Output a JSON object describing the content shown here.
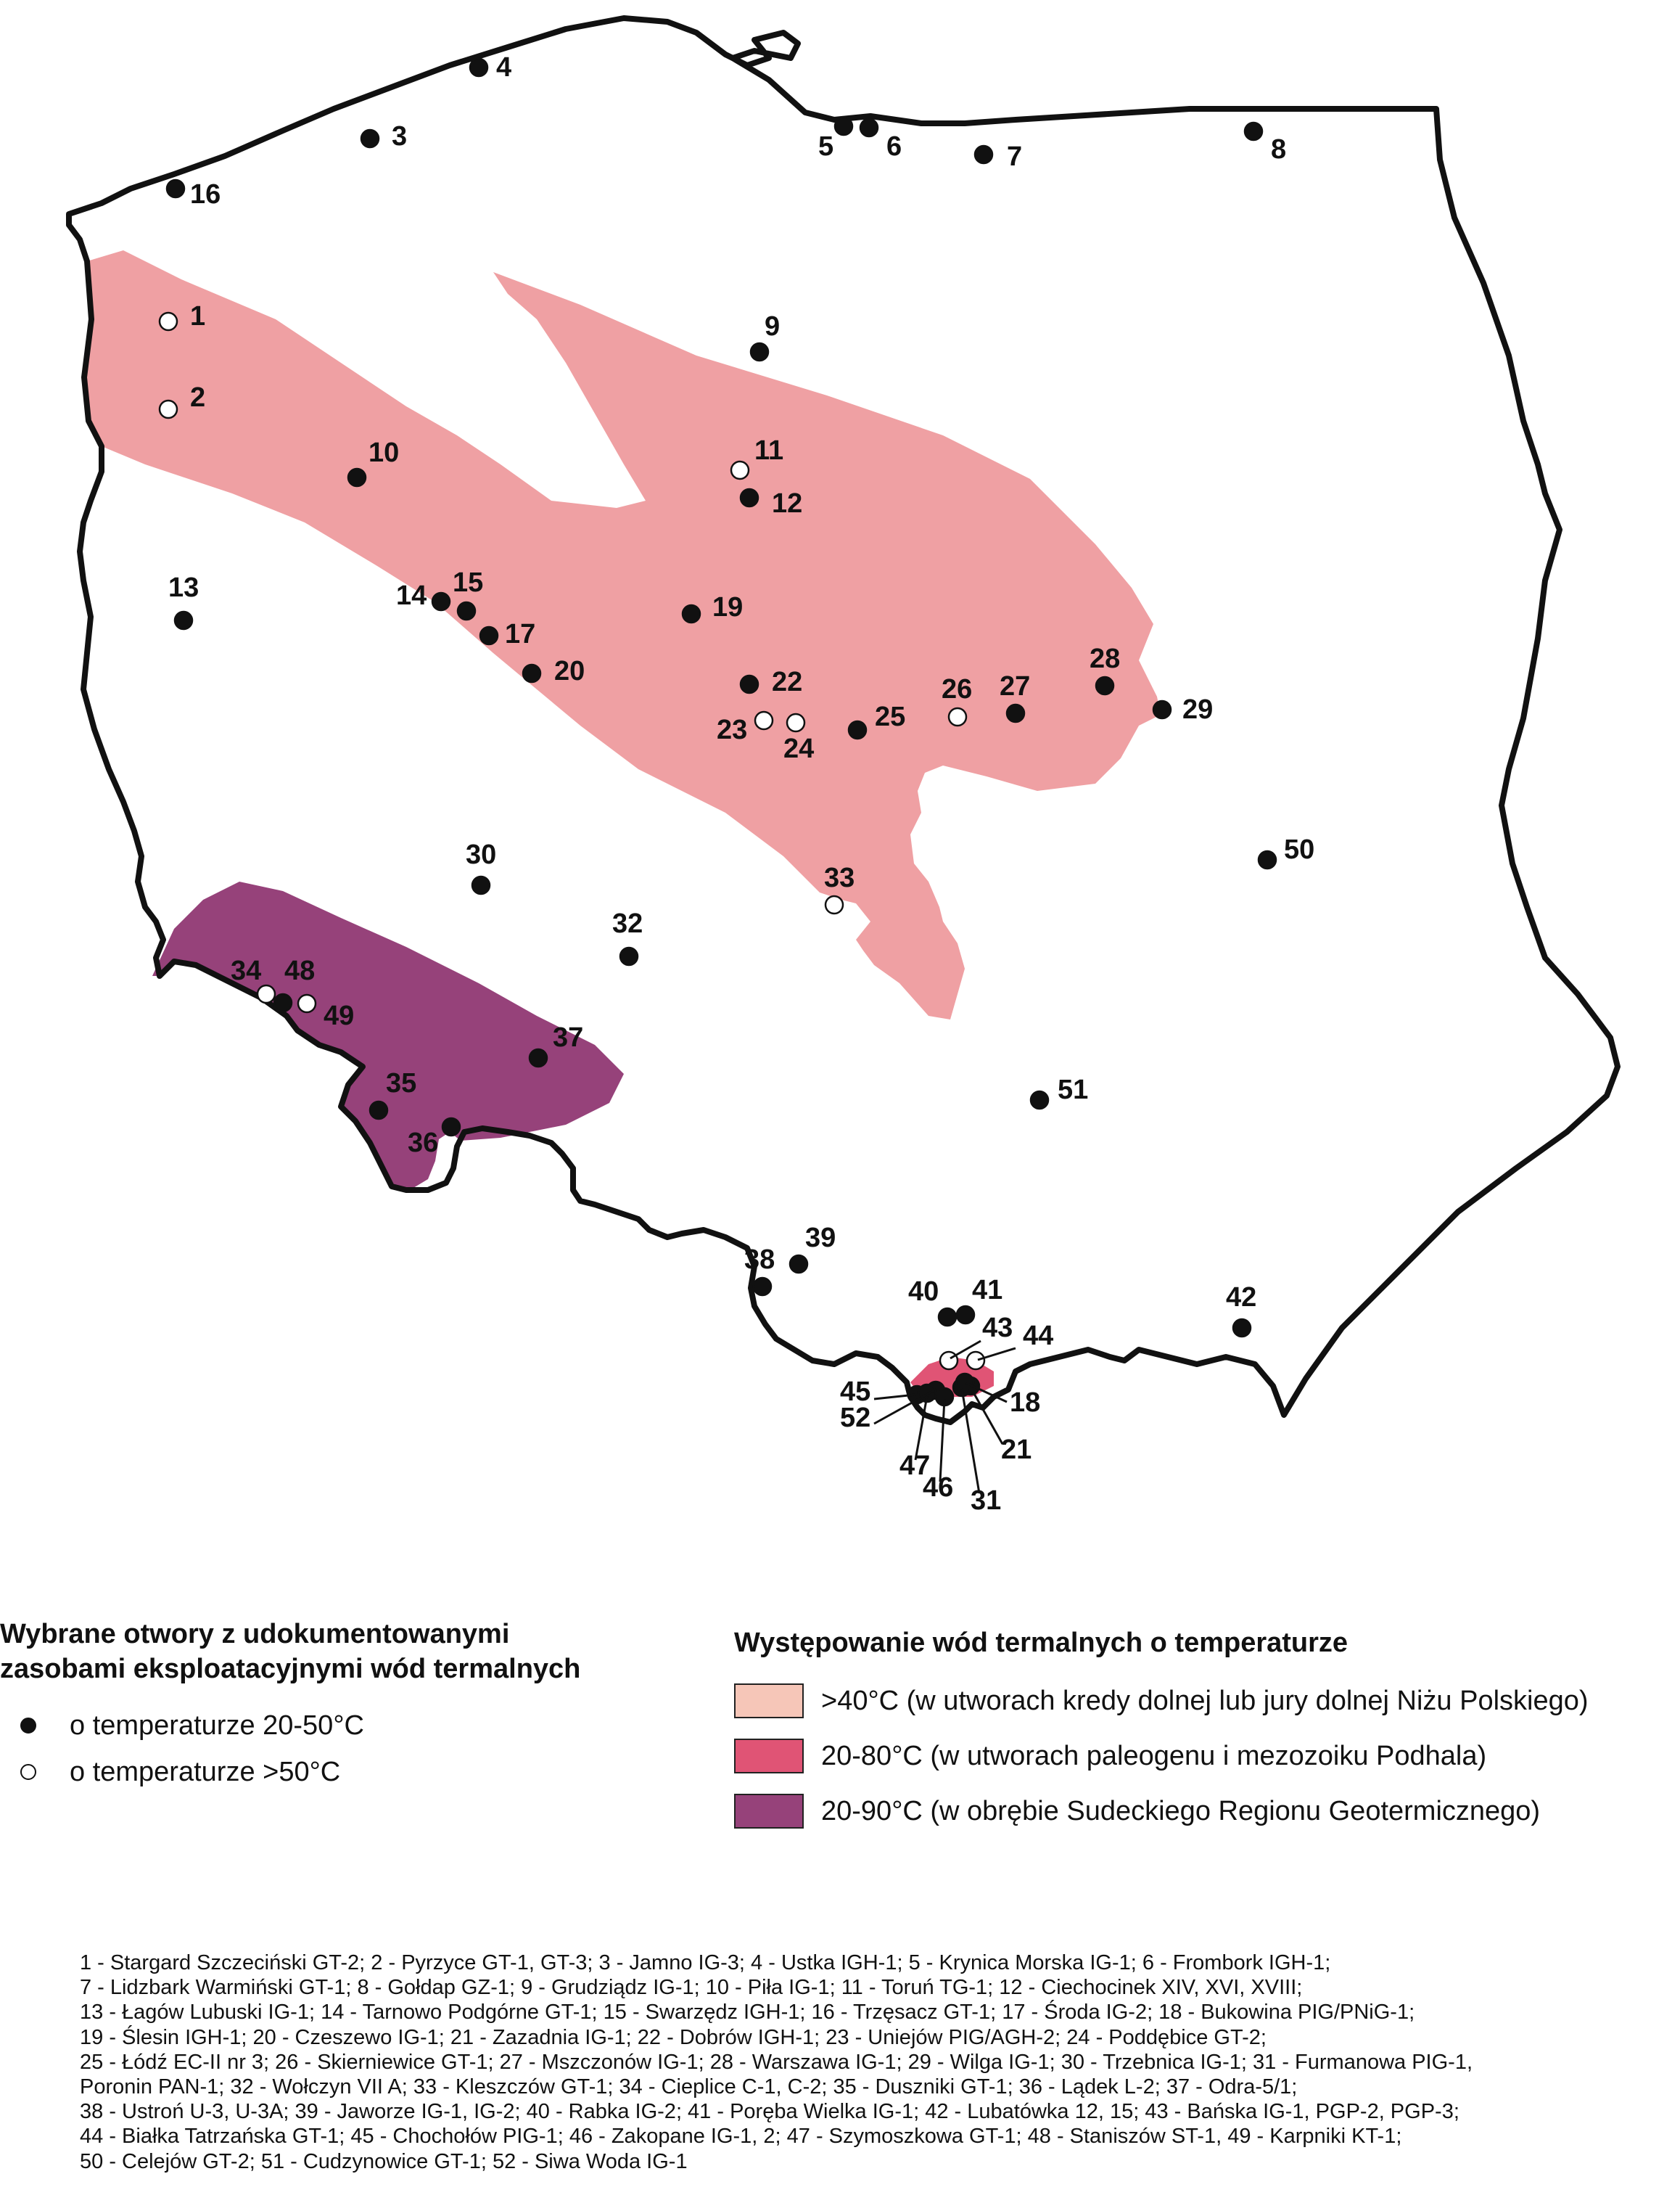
{
  "colors": {
    "zone_40": "#efa0a3",
    "zone_20_80": "#e05475",
    "zone_20_90": "#96427a",
    "swatch_40": "#f6c6b8",
    "dot_warm": "#111111",
    "dot_hot": "#ffffff"
  },
  "wells": [
    {
      "id": "1",
      "label": "1",
      "type": "hot"
    },
    {
      "id": "2",
      "label": "2",
      "type": "hot"
    },
    {
      "id": "3",
      "label": "3",
      "type": "warm"
    },
    {
      "id": "4",
      "label": "4",
      "type": "warm"
    },
    {
      "id": "5",
      "label": "5",
      "type": "warm"
    },
    {
      "id": "6",
      "label": "6",
      "type": "warm"
    },
    {
      "id": "7",
      "label": "7",
      "type": "warm"
    },
    {
      "id": "8",
      "label": "8",
      "type": "warm"
    },
    {
      "id": "9",
      "label": "9",
      "type": "warm"
    },
    {
      "id": "10",
      "label": "10",
      "type": "warm"
    },
    {
      "id": "11",
      "label": "11",
      "type": "hot"
    },
    {
      "id": "12",
      "label": "12",
      "type": "warm"
    },
    {
      "id": "13",
      "label": "13",
      "type": "warm"
    },
    {
      "id": "14",
      "label": "14",
      "type": "warm"
    },
    {
      "id": "15",
      "label": "15",
      "type": "warm"
    },
    {
      "id": "16",
      "label": "16",
      "type": "warm"
    },
    {
      "id": "17",
      "label": "17",
      "type": "warm"
    },
    {
      "id": "19",
      "label": "19",
      "type": "warm"
    },
    {
      "id": "20",
      "label": "20",
      "type": "warm"
    },
    {
      "id": "22",
      "label": "22",
      "type": "warm"
    },
    {
      "id": "23",
      "label": "23",
      "type": "hot"
    },
    {
      "id": "24",
      "label": "24",
      "type": "hot"
    },
    {
      "id": "25",
      "label": "25",
      "type": "warm"
    },
    {
      "id": "26",
      "label": "26",
      "type": "hot"
    },
    {
      "id": "27",
      "label": "27",
      "type": "warm"
    },
    {
      "id": "28",
      "label": "28",
      "type": "warm"
    },
    {
      "id": "29",
      "label": "29",
      "type": "warm"
    },
    {
      "id": "30",
      "label": "30",
      "type": "warm"
    },
    {
      "id": "32",
      "label": "32",
      "type": "warm"
    },
    {
      "id": "33",
      "label": "33",
      "type": "hot"
    },
    {
      "id": "34",
      "label": "34",
      "type": "hot"
    },
    {
      "id": "48",
      "label": "48",
      "type": "warm"
    },
    {
      "id": "49",
      "label": "49",
      "type": "hot"
    },
    {
      "id": "35",
      "label": "35",
      "type": "warm"
    },
    {
      "id": "36",
      "label": "36",
      "type": "warm"
    },
    {
      "id": "37",
      "label": "37",
      "type": "warm"
    },
    {
      "id": "50",
      "label": "50",
      "type": "warm"
    },
    {
      "id": "51",
      "label": "51",
      "type": "warm"
    },
    {
      "id": "38",
      "label": "38",
      "type": "warm"
    },
    {
      "id": "39",
      "label": "39",
      "type": "warm"
    },
    {
      "id": "40",
      "label": "40",
      "type": "warm"
    },
    {
      "id": "41",
      "label": "41",
      "type": "warm"
    },
    {
      "id": "42",
      "label": "42",
      "type": "warm"
    },
    {
      "id": "43",
      "label": "43",
      "type": "hot"
    },
    {
      "id": "44",
      "label": "44",
      "type": "hot"
    },
    {
      "id": "45",
      "label": "45",
      "type": "warm"
    },
    {
      "id": "52",
      "label": "52",
      "type": "warm"
    },
    {
      "id": "47",
      "label": "47",
      "type": "warm"
    },
    {
      "id": "46",
      "label": "46",
      "type": "warm"
    },
    {
      "id": "31",
      "label": "31",
      "type": "warm"
    },
    {
      "id": "21",
      "label": "21",
      "type": "warm"
    },
    {
      "id": "18",
      "label": "18",
      "type": "warm"
    }
  ],
  "legend_wells": {
    "title_line1": "Wybrane otwory z udokumentowanymi",
    "title_line2": "zasobami eksploatacyjnymi wód termalnych",
    "warm_label": "o temperaturze 20-50°C",
    "hot_label": "o temperaturze >50°C"
  },
  "legend_zones": {
    "title": "Występowanie wód termalnych o temperaturze",
    "zone_40_label": ">40°C (w utworach kredy dolnej lub jury dolnej Niżu Polskiego)",
    "zone_20_80_label": "20-80°C (w utworach paleogenu i mezozoiku Podhala)",
    "zone_20_90_label": "20-90°C (w obrębie Sudeckiego Regionu Geotermicznego)"
  },
  "well_list": [
    "1 - Stargard Szczeciński GT-2; 2 - Pyrzyce GT-1, GT-3; 3 - Jamno IG-3; 4 - Ustka IGH-1; 5 - Krynica Morska IG-1; 6 - Frombork IGH-1;",
    "7 - Lidzbark Warmiński GT-1; 8 - Gołdap GZ-1; 9 - Grudziądz IG-1; 10 - Piła IG-1; 11 - Toruń TG-1; 12 - Ciechocinek XIV, XVI, XVIII;",
    "13 - Łagów Lubuski IG-1; 14 - Tarnowo Podgórne GT-1; 15 - Swarzędz IGH-1; 16 - Trzęsacz GT-1; 17 - Środa IG-2; 18 - Bukowina PIG/PNiG-1;",
    "19 - Ślesin IGH-1; 20 - Czeszewo IG-1; 21 - Zazadnia IG-1; 22 - Dobrów IGH-1; 23 - Uniejów PIG/AGH-2; 24 - Poddębice GT-2;",
    "25 - Łódź EC-II nr 3; 26 - Skierniewice GT-1; 27 - Mszczonów IG-1; 28 - Warszawa IG-1; 29 - Wilga IG-1; 30 - Trzebnica IG-1; 31 - Furmanowa PIG-1,",
    "Poronin PAN-1; 32 - Wołczyn VII A; 33 - Kleszczów GT-1; 34 - Cieplice C-1, C-2; 35 - Duszniki GT-1; 36 - Lądek L-2; 37 - Odra-5/1;",
    "38 - Ustroń U-3, U-3A; 39 - Jaworze IG-1, IG-2; 40 - Rabka IG-2; 41 - Poręba Wielka IG-1; 42 - Lubatówka 12, 15; 43 - Bańska IG-1, PGP-2, PGP-3;",
    "44 - Białka Tatrzańska GT-1; 45 - Chochołów PIG-1; 46 - Zakopane IG-1, 2; 47 - Szymoszkowa GT-1; 48 - Staniszów ST-1, 49 - Karpniki KT-1;",
    "50 - Celejów GT-2; 51 - Cudzynowice GT-1; 52 - Siwa Woda IG-1"
  ]
}
